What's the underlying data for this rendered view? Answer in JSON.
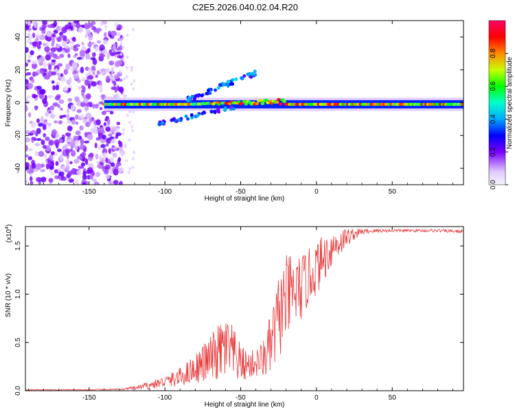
{
  "title": "C2E5.2026.040.02.04.R20",
  "chart_data": [
    {
      "type": "heatmap",
      "name": "spectrogram",
      "xlabel": "Height of straight line (km)",
      "ylabel": "Frequency (Hz)",
      "xlim": [
        -192,
        97
      ],
      "ylim": [
        -50,
        50
      ],
      "xticks": [
        -150,
        -100,
        -50,
        0,
        50
      ],
      "xtick_labels": [
        "-150",
        "-100",
        "-50",
        "0",
        "50"
      ],
      "yticks": [
        -40,
        -20,
        0,
        20,
        40
      ],
      "ytick_labels": [
        "-40",
        "-20",
        "0",
        "20",
        "40"
      ],
      "colorbar": {
        "label": "Normalized spectral amplitude",
        "range": [
          0,
          1
        ],
        "ticks": [
          0.0,
          0.2,
          0.4,
          0.6,
          0.8
        ],
        "tick_labels": [
          "0.0",
          "0.2",
          "0.4",
          "0.6",
          "0.8"
        ]
      },
      "features": [
        {
          "name": "noise region",
          "x_range": [
            -192,
            -128
          ],
          "freq_range": [
            -50,
            50
          ],
          "amplitude": 0.1
        },
        {
          "name": "main carrier line",
          "x_range": [
            -140,
            97
          ],
          "freq": -1,
          "amplitude_range": [
            0.3,
            1.0
          ]
        },
        {
          "name": "upper spur",
          "x_range": [
            -85,
            -40
          ],
          "freq_range": [
            2,
            18
          ],
          "amplitude": 0.35
        },
        {
          "name": "lower spur",
          "x_range": [
            -105,
            -50
          ],
          "freq_range": [
            -13,
            -2
          ],
          "amplitude": 0.2
        }
      ]
    },
    {
      "type": "line",
      "name": "snr",
      "xlabel": "Height of straight line (km)",
      "ylabel": "SNR (10 * v/v)",
      "scale_label": "(x10",
      "scale_exponent": "4",
      "xlim": [
        -192,
        97
      ],
      "ylim": [
        0,
        1.7
      ],
      "xticks": [
        -150,
        -100,
        -50,
        0,
        50
      ],
      "xtick_labels": [
        "-150",
        "-100",
        "-50",
        "0",
        "50"
      ],
      "yticks": [
        0.0,
        0.5,
        1.0,
        1.5
      ],
      "ytick_labels": [
        "0.0",
        "0.5",
        "1.0",
        "1.5"
      ],
      "color": "#e8383a",
      "envelope": {
        "x": [
          -192,
          -150,
          -130,
          -120,
          -110,
          -100,
          -90,
          -80,
          -70,
          -60,
          -55,
          -50,
          -45,
          -40,
          -35,
          -30,
          -25,
          -20,
          -15,
          -10,
          -5,
          0,
          5,
          10,
          15,
          20,
          25,
          30,
          40,
          60,
          80,
          97
        ],
        "y": [
          0.01,
          0.01,
          0.015,
          0.03,
          0.06,
          0.1,
          0.15,
          0.25,
          0.35,
          0.48,
          0.4,
          0.3,
          0.28,
          0.3,
          0.35,
          0.5,
          0.8,
          1.0,
          1.05,
          1.1,
          1.2,
          1.3,
          1.4,
          1.5,
          1.55,
          1.6,
          1.63,
          1.65,
          1.66,
          1.66,
          1.66,
          1.65
        ],
        "amplitude": [
          0.005,
          0.005,
          0.008,
          0.02,
          0.04,
          0.06,
          0.1,
          0.15,
          0.25,
          0.35,
          0.3,
          0.2,
          0.15,
          0.15,
          0.2,
          0.35,
          0.45,
          0.45,
          0.4,
          0.35,
          0.3,
          0.28,
          0.25,
          0.2,
          0.15,
          0.1,
          0.06,
          0.03,
          0.02,
          0.015,
          0.015,
          0.02
        ]
      }
    }
  ]
}
